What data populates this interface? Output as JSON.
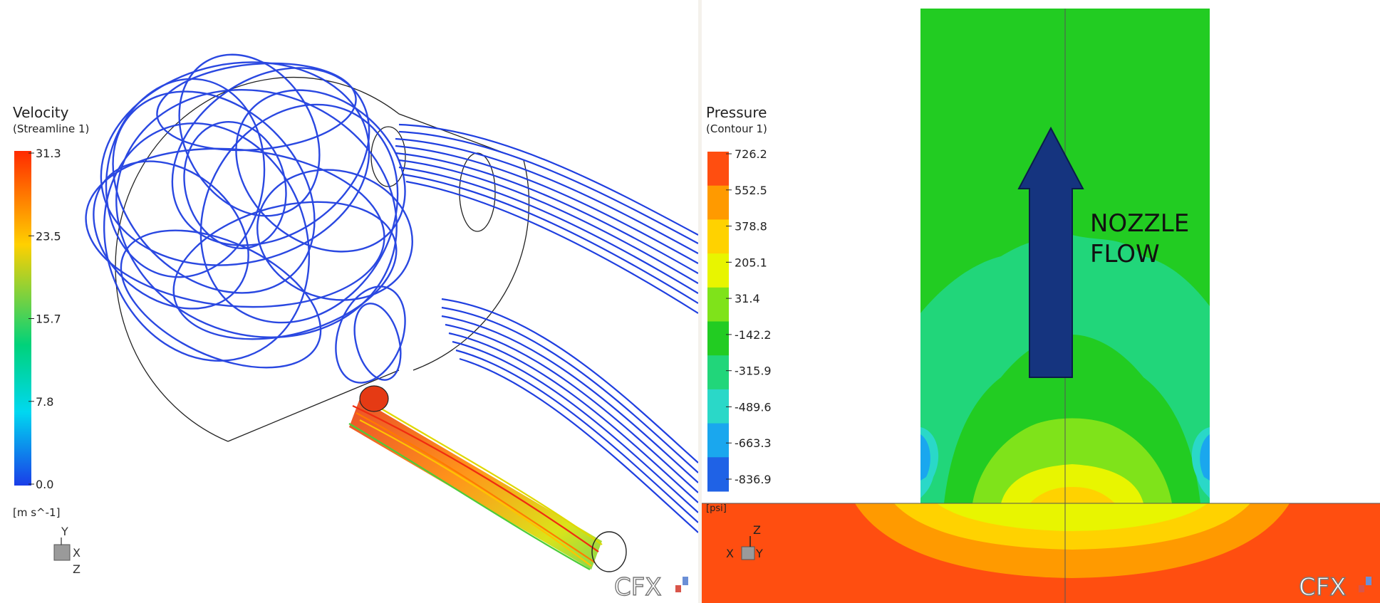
{
  "left": {
    "legend": {
      "title": "Velocity",
      "subtitle": "(Streamline  1)",
      "ticks": [
        "31.3",
        "23.5",
        "15.7",
        "7.8",
        "0.0"
      ],
      "units": "[m s^-1]"
    },
    "axes": {
      "up": "Y",
      "right": "X",
      "down": "Z"
    },
    "logo": "CFX"
  },
  "right": {
    "legend": {
      "title": "Pressure",
      "subtitle": "(Contour  1)",
      "ticks": [
        "726.2",
        "552.5",
        "378.8",
        "205.1",
        "31.4",
        "-142.2",
        "-315.9",
        "-489.6",
        "-663.3",
        "-836.9"
      ],
      "units": "[psi]"
    },
    "annotation": {
      "line1": "NOZZLE",
      "line2": "FLOW"
    },
    "axes": {
      "up": "Z",
      "left": "X",
      "right": "Y"
    },
    "logo": "CFX"
  },
  "colors": {
    "streamline": "#1f3fe0",
    "arrow": "#15347f",
    "pressure_bands": [
      "#ff4e10",
      "#ff9a00",
      "#ffd200",
      "#e8f500",
      "#7fe31a",
      "#22cc22",
      "#21d67a",
      "#2ad8c8",
      "#1aa7ee",
      "#1f62e6"
    ],
    "velocity_stops": [
      "#ff2a00",
      "#ffd000",
      "#00d27a",
      "#00d8f0",
      "#1a3de8"
    ]
  }
}
